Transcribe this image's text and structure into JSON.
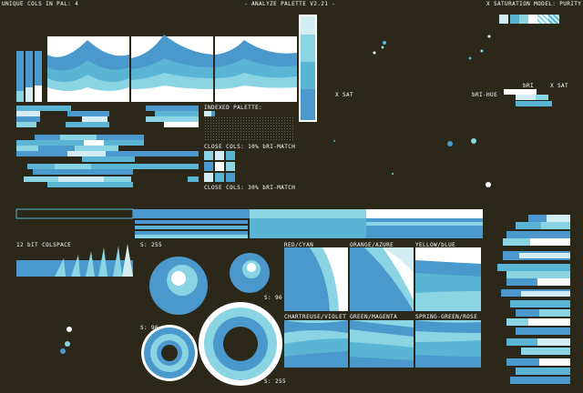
{
  "header": {
    "unique_cols": "UNIQUE COLS IN PAL: 4",
    "title": "- ANALYZE PALETTE V2.21 -",
    "sat_model": "X SATURATION MODEL: PURITY"
  },
  "colors": {
    "background": "#2b281a",
    "white": "#ffffff",
    "pale_blue": "#d4ecf4",
    "cyan": "#8ad4e4",
    "mid_blue": "#5ab4d4",
    "blue": "#4a98cc",
    "dark_blue": "#3a78b4"
  },
  "palette": [
    "#3a78b4",
    "#5ab4d4",
    "#8ad4e4",
    "#ffffff"
  ],
  "labels": {
    "sat_left": "X SAT",
    "bri_hue": "bRI-HUE",
    "bri": "bRI",
    "sat_right": "X SAT",
    "indexed_palette": "INDEXED PALETTE:",
    "close_cols_10": "CLOSE COLS: 10% bRI-MATCH",
    "close_cols_30": "CLOSE COLS: 30% bRI-MATCH",
    "colspace": "12 bIT COLSPACE",
    "s255_top": "S: 255",
    "s96_right": "S: 96",
    "s96_left": "S: 96",
    "s255_bottom": "S: 255",
    "red_cyan": "RED/CYAN",
    "orange_azure": "ORANGE/AZURE",
    "yellow_blue": "YELLOW/bLUE",
    "chartreuse_violet": "CHARTREUSE/VIOLET",
    "green_magenta": "GREEN/MAGENTA",
    "spring_green_rose": "SPRING-GREEN/ROSE"
  },
  "icons": {
    "sat_toggle_left": "x-toggle-icon",
    "sat_toggle_right": "x-toggle-icon",
    "sat_model_toggle": "x-toggle-icon"
  }
}
